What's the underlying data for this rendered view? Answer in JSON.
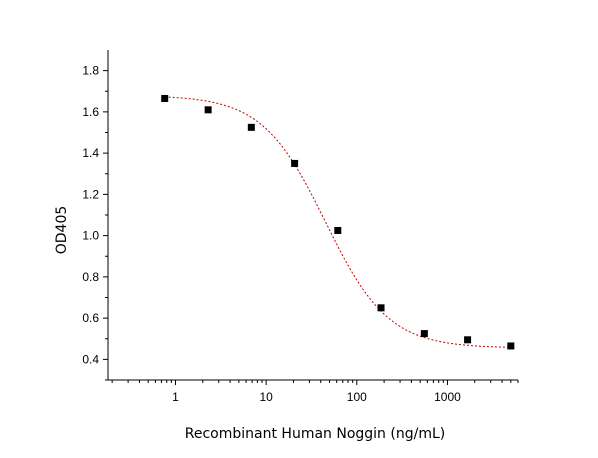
{
  "chart_data": {
    "type": "scatter",
    "title": "",
    "xlabel": "Recombinant Human Noggin (ng/mL)",
    "ylabel": "OD405",
    "xscale": "log",
    "xlim": [
      0.18,
      6000
    ],
    "ylim": [
      0.3,
      1.9
    ],
    "x_ticks": [
      1,
      10,
      100,
      1000
    ],
    "x_tick_labels": [
      "1",
      "10",
      "100",
      "1000"
    ],
    "y_ticks": [
      0.4,
      0.6,
      0.8,
      1.0,
      1.2,
      1.4,
      1.6,
      1.8
    ],
    "y_tick_labels": [
      "0.4",
      "0.6",
      "0.8",
      "1.0",
      "1.2",
      "1.4",
      "1.6",
      "1.8"
    ],
    "grid": false,
    "legend": "none",
    "series": [
      {
        "x": [
          0.76,
          2.29,
          6.86,
          20.6,
          61.7,
          185,
          556,
          1667,
          5000
        ],
        "y": [
          1.665,
          1.61,
          1.525,
          1.35,
          1.025,
          0.65,
          0.525,
          0.495,
          0.465
        ],
        "marker": "square",
        "color": "#000000"
      }
    ],
    "fit": {
      "model": "4PL",
      "top": 1.68,
      "bottom": 0.455,
      "ec50": 45,
      "hill": 1.25,
      "color": "#cc0000",
      "style": "dashed"
    }
  }
}
